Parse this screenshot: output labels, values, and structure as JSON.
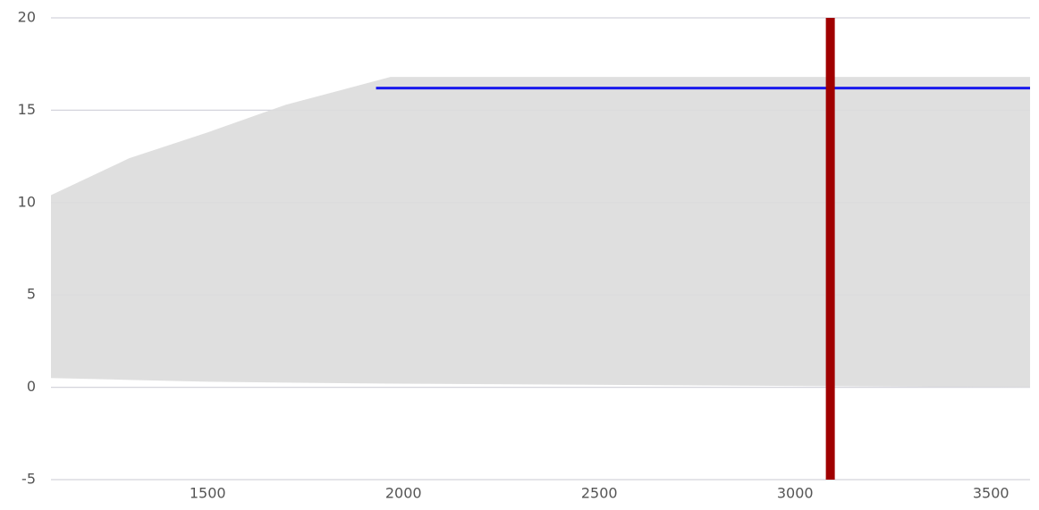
{
  "chart_data": {
    "type": "area",
    "band": {
      "x": [
        1100,
        1300,
        1500,
        1700,
        1967,
        3600
      ],
      "upper": [
        10.4,
        12.4,
        13.8,
        15.3,
        16.8,
        16.8
      ],
      "lower": [
        0.5,
        0.4,
        0.3,
        0.25,
        0.2,
        0.0
      ],
      "color": "#dcdcdc"
    },
    "line": {
      "x": [
        1930,
        3600
      ],
      "values": [
        16.2,
        16.2
      ],
      "color": "#1a1aee"
    },
    "marker_x": 3090,
    "marker_color": "#a00000",
    "xlim": [
      1100,
      3600
    ],
    "xticks": [
      1500,
      2000,
      2500,
      3000,
      3500
    ],
    "ylim": [
      -5,
      20
    ],
    "yticks": [
      -5,
      0,
      5,
      10,
      15,
      20
    ],
    "grid": true
  }
}
